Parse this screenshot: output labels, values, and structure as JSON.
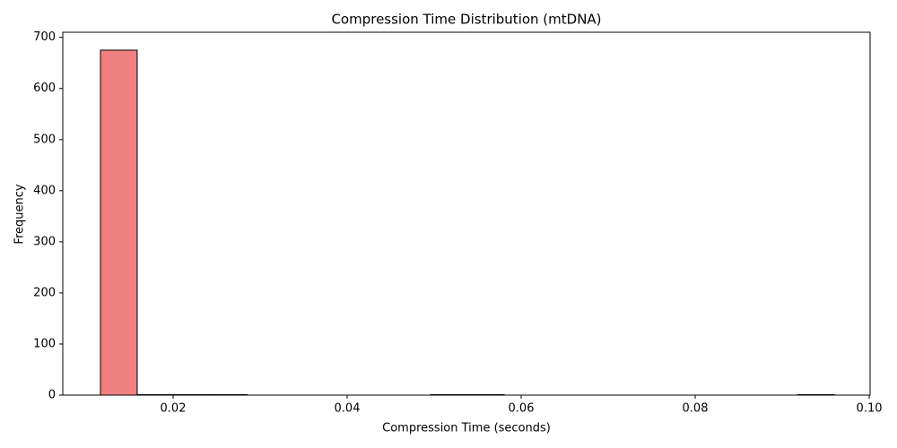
{
  "chart_data": {
    "type": "histogram",
    "title": "Compression Time Distribution (mtDNA)",
    "x_label": "Compression Time (seconds)",
    "y_label": "Frequency",
    "bins": [
      0.01165,
      0.01587,
      0.02008,
      0.0243,
      0.02852,
      0.03274,
      0.03696,
      0.04117,
      0.04539,
      0.04961,
      0.05383,
      0.05804,
      0.06226,
      0.06648,
      0.0707,
      0.07491,
      0.07913,
      0.08335,
      0.08757,
      0.09178,
      0.096
    ],
    "values": [
      675,
      1,
      1,
      1,
      0,
      0,
      0,
      0,
      0,
      1,
      1,
      0,
      0,
      0,
      0,
      0,
      0,
      0,
      0,
      1
    ],
    "color": "#f08080",
    "edgecolor": "#000000",
    "xlim": [
      0.00732,
      0.1001
    ],
    "ylim": [
      0,
      710
    ],
    "xticks": [
      0.02,
      0.04,
      0.06,
      0.08,
      {
        "value": 0.1,
        "label": "0.10"
      }
    ],
    "yticks": [
      0,
      100,
      200,
      300,
      400,
      500,
      600,
      700
    ]
  }
}
